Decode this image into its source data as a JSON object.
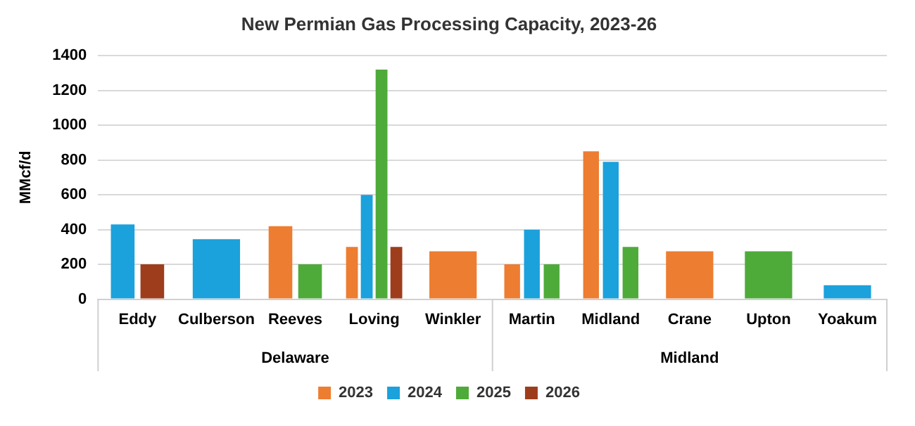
{
  "chart_data": {
    "type": "bar",
    "title": "New Permian Gas Processing Capacity, 2023-26",
    "ylabel": "MMcf/d",
    "categories": [
      "Eddy",
      "Culberson",
      "Reeves",
      "Loving",
      "Winkler",
      "Martin",
      "Midland",
      "Crane",
      "Upton",
      "Yoakum"
    ],
    "series": [
      {
        "name": "2023",
        "color": "#ed7d31",
        "values": [
          null,
          null,
          420,
          300,
          275,
          200,
          850,
          275,
          null,
          null
        ]
      },
      {
        "name": "2024",
        "color": "#1ba1db",
        "values": [
          430,
          345,
          null,
          600,
          null,
          400,
          790,
          null,
          null,
          80
        ]
      },
      {
        "name": "2025",
        "color": "#4eab3a",
        "values": [
          null,
          null,
          200,
          1320,
          null,
          200,
          300,
          null,
          275,
          null
        ]
      },
      {
        "name": "2026",
        "color": "#9e3d1c",
        "values": [
          200,
          null,
          null,
          300,
          null,
          null,
          null,
          null,
          null,
          null
        ]
      }
    ],
    "ylim": [
      0,
      1400
    ],
    "yticks": [
      0,
      200,
      400,
      600,
      800,
      1000,
      1200,
      1400
    ],
    "grid": "y",
    "legend": "bottom",
    "annotations": [
      "Delaware",
      "Midland"
    ]
  }
}
